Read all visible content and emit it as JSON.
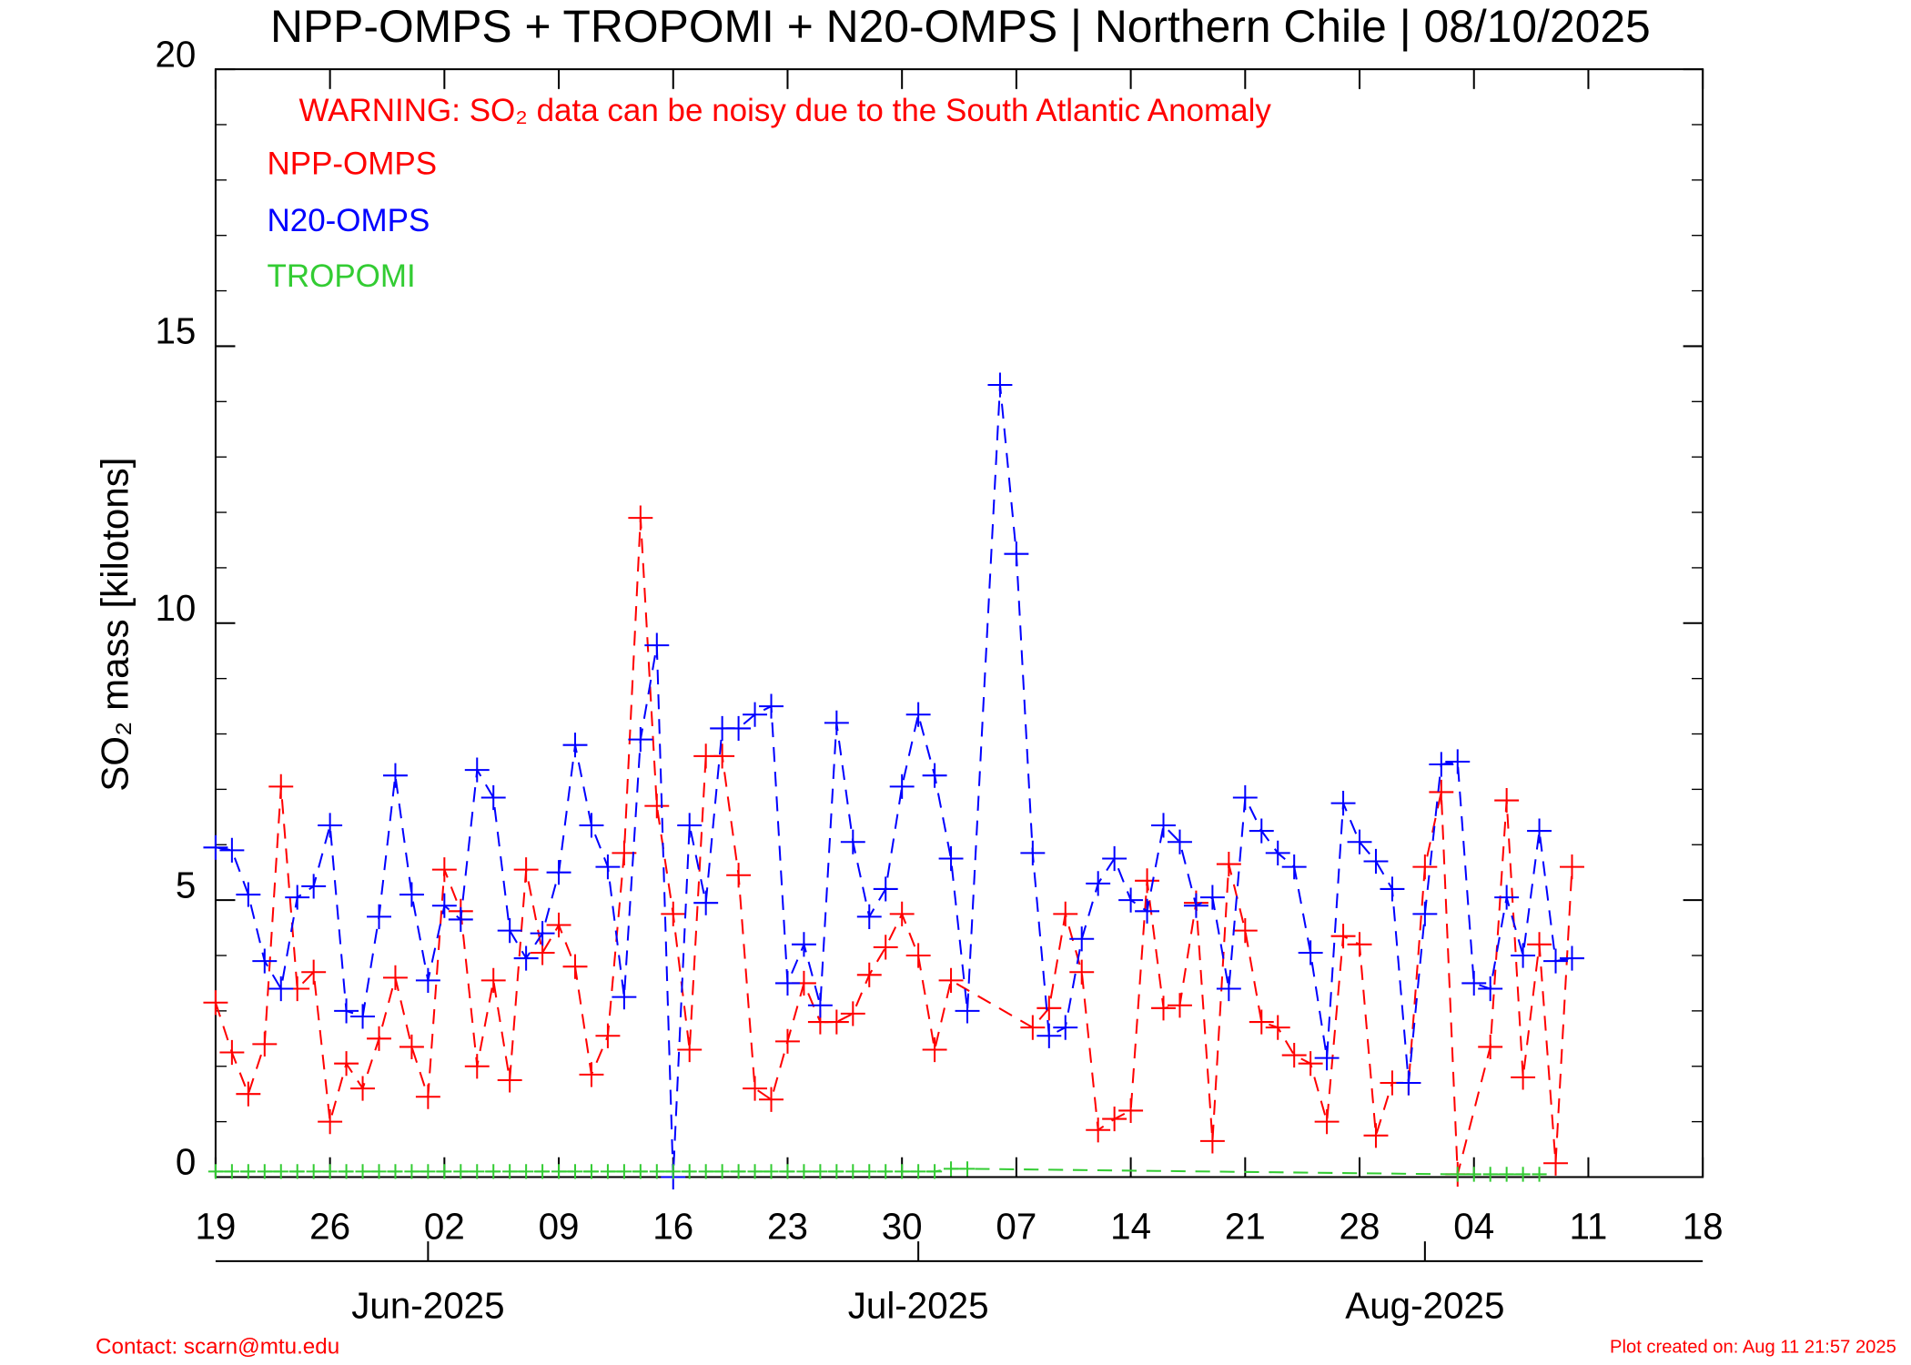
{
  "chart_data": {
    "type": "line",
    "title": "NPP-OMPS + TROPOMI + N20-OMPS | Northern Chile | 08/10/2025",
    "annotation": "WARNING: SO₂ data can be noisy due to the South Atlantic Anomaly",
    "y_label": "SO₂ mass [kilotons]",
    "footer_left": "Contact: scarn@mtu.edu",
    "footer_right": "Plot created on: Aug 11 21:57 2025",
    "xlim": [
      "2025-05-19",
      "2025-08-18"
    ],
    "xticks": [
      {
        "value": "2025-05-19",
        "label": "19"
      },
      {
        "value": "2025-05-26",
        "label": "26"
      },
      {
        "value": "2025-06-02",
        "label": "02"
      },
      {
        "value": "2025-06-09",
        "label": "09"
      },
      {
        "value": "2025-06-16",
        "label": "16"
      },
      {
        "value": "2025-06-23",
        "label": "23"
      },
      {
        "value": "2025-06-30",
        "label": "30"
      },
      {
        "value": "2025-07-07",
        "label": "07"
      },
      {
        "value": "2025-07-14",
        "label": "14"
      },
      {
        "value": "2025-07-21",
        "label": "21"
      },
      {
        "value": "2025-07-28",
        "label": "28"
      },
      {
        "value": "2025-08-04",
        "label": "04"
      },
      {
        "value": "2025-08-11",
        "label": "11"
      },
      {
        "value": "2025-08-18",
        "label": "18"
      }
    ],
    "month_ticks": [
      {
        "value": "2025-06-01",
        "label": "Jun-2025"
      },
      {
        "value": "2025-07-01",
        "label": "Jul-2025"
      },
      {
        "value": "2025-08-01",
        "label": "Aug-2025"
      }
    ],
    "ylim": [
      0,
      20
    ],
    "yticks": [
      0,
      5,
      10,
      15,
      20
    ],
    "series": [
      {
        "name": "NPP-OMPS",
        "color": "#ff0000",
        "x": [
          "2025-05-19",
          "2025-05-20",
          "2025-05-21",
          "2025-05-22",
          "2025-05-23",
          "2025-05-24",
          "2025-05-25",
          "2025-05-26",
          "2025-05-27",
          "2025-05-28",
          "2025-05-29",
          "2025-05-30",
          "2025-05-31",
          "2025-06-01",
          "2025-06-02",
          "2025-06-03",
          "2025-06-04",
          "2025-06-05",
          "2025-06-06",
          "2025-06-07",
          "2025-06-08",
          "2025-06-09",
          "2025-06-10",
          "2025-06-11",
          "2025-06-12",
          "2025-06-13",
          "2025-06-14",
          "2025-06-15",
          "2025-06-16",
          "2025-06-17",
          "2025-06-18",
          "2025-06-19",
          "2025-06-20",
          "2025-06-21",
          "2025-06-22",
          "2025-06-23",
          "2025-06-24",
          "2025-06-25",
          "2025-06-26",
          "2025-06-27",
          "2025-06-28",
          "2025-06-29",
          "2025-06-30",
          "2025-07-01",
          "2025-07-02",
          "2025-07-03",
          "2025-07-08",
          "2025-07-09",
          "2025-07-10",
          "2025-07-11",
          "2025-07-12",
          "2025-07-13",
          "2025-07-14",
          "2025-07-15",
          "2025-07-16",
          "2025-07-17",
          "2025-07-18",
          "2025-07-19",
          "2025-07-20",
          "2025-07-21",
          "2025-07-22",
          "2025-07-23",
          "2025-07-24",
          "2025-07-25",
          "2025-07-26",
          "2025-07-27",
          "2025-07-28",
          "2025-07-29",
          "2025-07-30",
          "2025-07-31",
          "2025-08-01",
          "2025-08-02",
          "2025-08-03",
          "2025-08-05",
          "2025-08-06",
          "2025-08-07",
          "2025-08-08",
          "2025-08-09",
          "2025-08-10"
        ],
        "values": [
          3.15,
          2.25,
          1.5,
          2.4,
          7.05,
          3.4,
          3.7,
          1.0,
          2.05,
          1.6,
          2.5,
          3.6,
          2.35,
          1.45,
          5.55,
          4.8,
          2.0,
          3.55,
          1.75,
          5.55,
          4.05,
          4.55,
          3.8,
          1.85,
          2.55,
          5.85,
          11.9,
          6.7,
          4.75,
          2.3,
          7.6,
          7.6,
          5.45,
          1.6,
          1.4,
          2.45,
          3.5,
          2.8,
          2.8,
          2.95,
          3.65,
          4.15,
          4.75,
          4.0,
          2.3,
          3.55,
          2.7,
          3.05,
          4.75,
          3.7,
          0.85,
          1.05,
          1.2,
          5.35,
          3.05,
          3.1,
          4.95,
          0.65,
          5.65,
          4.45,
          2.8,
          2.7,
          2.2,
          2.05,
          1.0,
          4.35,
          4.2,
          0.75,
          1.7,
          1.7,
          5.6,
          6.95,
          0.05,
          2.35,
          6.8,
          1.8,
          4.2,
          0.25,
          5.6
        ]
      },
      {
        "name": "N20-OMPS",
        "color": "#0000ff",
        "x": [
          "2025-05-19",
          "2025-05-20",
          "2025-05-21",
          "2025-05-22",
          "2025-05-23",
          "2025-05-24",
          "2025-05-25",
          "2025-05-26",
          "2025-05-27",
          "2025-05-28",
          "2025-05-29",
          "2025-05-30",
          "2025-05-31",
          "2025-06-01",
          "2025-06-02",
          "2025-06-03",
          "2025-06-04",
          "2025-06-05",
          "2025-06-06",
          "2025-06-07",
          "2025-06-08",
          "2025-06-09",
          "2025-06-10",
          "2025-06-11",
          "2025-06-12",
          "2025-06-13",
          "2025-06-14",
          "2025-06-15",
          "2025-06-16",
          "2025-06-17",
          "2025-06-18",
          "2025-06-19",
          "2025-06-20",
          "2025-06-21",
          "2025-06-22",
          "2025-06-23",
          "2025-06-24",
          "2025-06-25",
          "2025-06-26",
          "2025-06-27",
          "2025-06-28",
          "2025-06-29",
          "2025-06-30",
          "2025-07-01",
          "2025-07-02",
          "2025-07-03",
          "2025-07-04",
          "2025-07-06",
          "2025-07-07",
          "2025-07-08",
          "2025-07-09",
          "2025-07-10",
          "2025-07-11",
          "2025-07-12",
          "2025-07-13",
          "2025-07-14",
          "2025-07-15",
          "2025-07-16",
          "2025-07-17",
          "2025-07-18",
          "2025-07-19",
          "2025-07-20",
          "2025-07-21",
          "2025-07-22",
          "2025-07-23",
          "2025-07-24",
          "2025-07-25",
          "2025-07-26",
          "2025-07-27",
          "2025-07-28",
          "2025-07-29",
          "2025-07-30",
          "2025-07-31",
          "2025-08-01",
          "2025-08-02",
          "2025-08-03",
          "2025-08-04",
          "2025-08-05",
          "2025-08-06",
          "2025-08-07",
          "2025-08-08",
          "2025-08-09",
          "2025-08-10"
        ],
        "values": [
          5.95,
          5.9,
          5.1,
          3.9,
          3.4,
          5.05,
          5.25,
          6.35,
          3.0,
          2.9,
          4.7,
          7.25,
          5.1,
          3.55,
          4.9,
          4.65,
          7.35,
          6.85,
          4.45,
          3.95,
          4.4,
          5.5,
          7.8,
          6.35,
          5.6,
          3.25,
          7.9,
          9.6,
          0,
          6.35,
          4.95,
          8.1,
          8.1,
          8.35,
          8.5,
          3.5,
          4.2,
          3.1,
          8.2,
          6.05,
          4.7,
          5.2,
          7.05,
          8.35,
          7.25,
          5.75,
          3.0,
          14.3,
          11.25,
          5.85,
          2.55,
          2.7,
          4.3,
          5.3,
          5.75,
          5.0,
          4.8,
          6.35,
          6.05,
          4.9,
          5.05,
          3.4,
          6.85,
          6.25,
          5.85,
          5.6,
          4.05,
          2.15,
          6.75,
          6.05,
          5.7,
          5.2,
          1.7,
          4.75,
          7.45,
          7.5,
          3.5,
          3.4,
          5.05,
          4.0,
          6.25,
          3.9,
          3.95
        ]
      },
      {
        "name": "TROPOMI",
        "color": "#33cc33",
        "x": [
          "2025-05-19",
          "2025-05-20",
          "2025-05-21",
          "2025-05-22",
          "2025-05-23",
          "2025-05-24",
          "2025-05-25",
          "2025-05-26",
          "2025-05-27",
          "2025-05-28",
          "2025-05-29",
          "2025-05-30",
          "2025-05-31",
          "2025-06-01",
          "2025-06-02",
          "2025-06-03",
          "2025-06-04",
          "2025-06-05",
          "2025-06-06",
          "2025-06-07",
          "2025-06-08",
          "2025-06-09",
          "2025-06-10",
          "2025-06-11",
          "2025-06-12",
          "2025-06-13",
          "2025-06-14",
          "2025-06-15",
          "2025-06-16",
          "2025-06-17",
          "2025-06-18",
          "2025-06-19",
          "2025-06-20",
          "2025-06-21",
          "2025-06-22",
          "2025-06-23",
          "2025-06-24",
          "2025-06-25",
          "2025-06-26",
          "2025-06-27",
          "2025-06-28",
          "2025-06-29",
          "2025-06-30",
          "2025-07-01",
          "2025-07-02",
          "2025-07-03",
          "2025-07-04",
          "2025-08-03",
          "2025-08-04",
          "2025-08-05",
          "2025-08-06",
          "2025-08-07",
          "2025-08-08"
        ],
        "values": [
          0.1,
          0.1,
          0.1,
          0.1,
          0.1,
          0.1,
          0.1,
          0.1,
          0.1,
          0.1,
          0.1,
          0.1,
          0.1,
          0.1,
          0.1,
          0.1,
          0.1,
          0.1,
          0.1,
          0.1,
          0.1,
          0.1,
          0.1,
          0.1,
          0.1,
          0.1,
          0.1,
          0.1,
          0.1,
          0.1,
          0.1,
          0.1,
          0.1,
          0.1,
          0.1,
          0.1,
          0.1,
          0.1,
          0.1,
          0.1,
          0.1,
          0.1,
          0.1,
          0.1,
          0.1,
          0.15,
          0.15,
          0.05,
          0.05,
          0.05,
          0.05,
          0.05,
          0.05
        ]
      }
    ]
  }
}
